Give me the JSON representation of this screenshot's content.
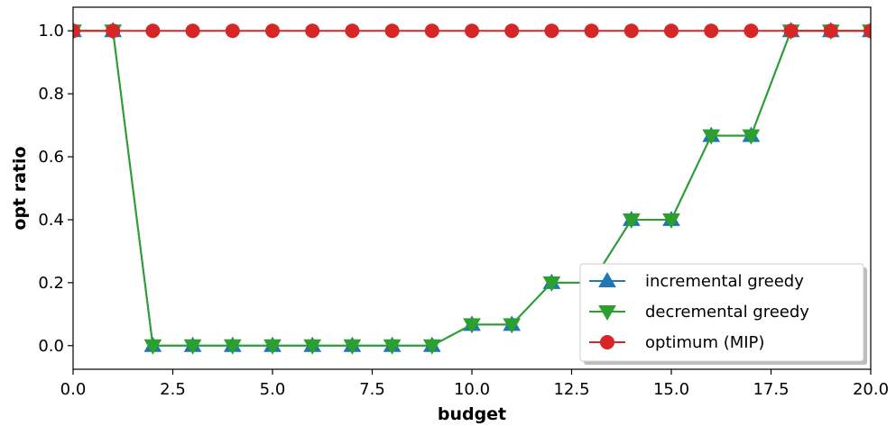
{
  "chart_data": {
    "type": "line",
    "title": "",
    "xlabel": "budget",
    "ylabel": "opt ratio",
    "xlim": [
      0,
      20
    ],
    "ylim": [
      -0.075,
      1.075
    ],
    "x_ticks": [
      "0.0",
      "2.5",
      "5.0",
      "7.5",
      "10.0",
      "12.5",
      "15.0",
      "17.5",
      "20.0"
    ],
    "y_ticks": [
      "0.0",
      "0.2",
      "0.4",
      "0.6",
      "0.8",
      "1.0"
    ],
    "grid": false,
    "legend_position": "lower-right",
    "x": [
      0,
      1,
      2,
      3,
      4,
      5,
      6,
      7,
      8,
      9,
      10,
      11,
      12,
      13,
      14,
      15,
      16,
      17,
      18,
      19,
      20
    ],
    "series": [
      {
        "name": "incremental greedy",
        "color": "#1f77b4",
        "marker": "triangle-up",
        "values": [
          1.0,
          1.0,
          0,
          0,
          0,
          0,
          0,
          0,
          0,
          0,
          0.067,
          0.067,
          0.2,
          0.2,
          0.4,
          0.4,
          0.667,
          0.667,
          1.0,
          1.0,
          1.0
        ]
      },
      {
        "name": "decremental greedy",
        "color": "#2ca02c",
        "marker": "triangle-down",
        "values": [
          1.0,
          1.0,
          0,
          0,
          0,
          0,
          0,
          0,
          0,
          0,
          0.067,
          0.067,
          0.2,
          0.2,
          0.4,
          0.4,
          0.667,
          0.667,
          1.0,
          1.0,
          1.0
        ]
      },
      {
        "name": "optimum (MIP)",
        "color": "#d62728",
        "marker": "circle",
        "values": [
          1,
          1,
          1,
          1,
          1,
          1,
          1,
          1,
          1,
          1,
          1,
          1,
          1,
          1,
          1,
          1,
          1,
          1,
          1,
          1,
          1
        ]
      }
    ]
  }
}
